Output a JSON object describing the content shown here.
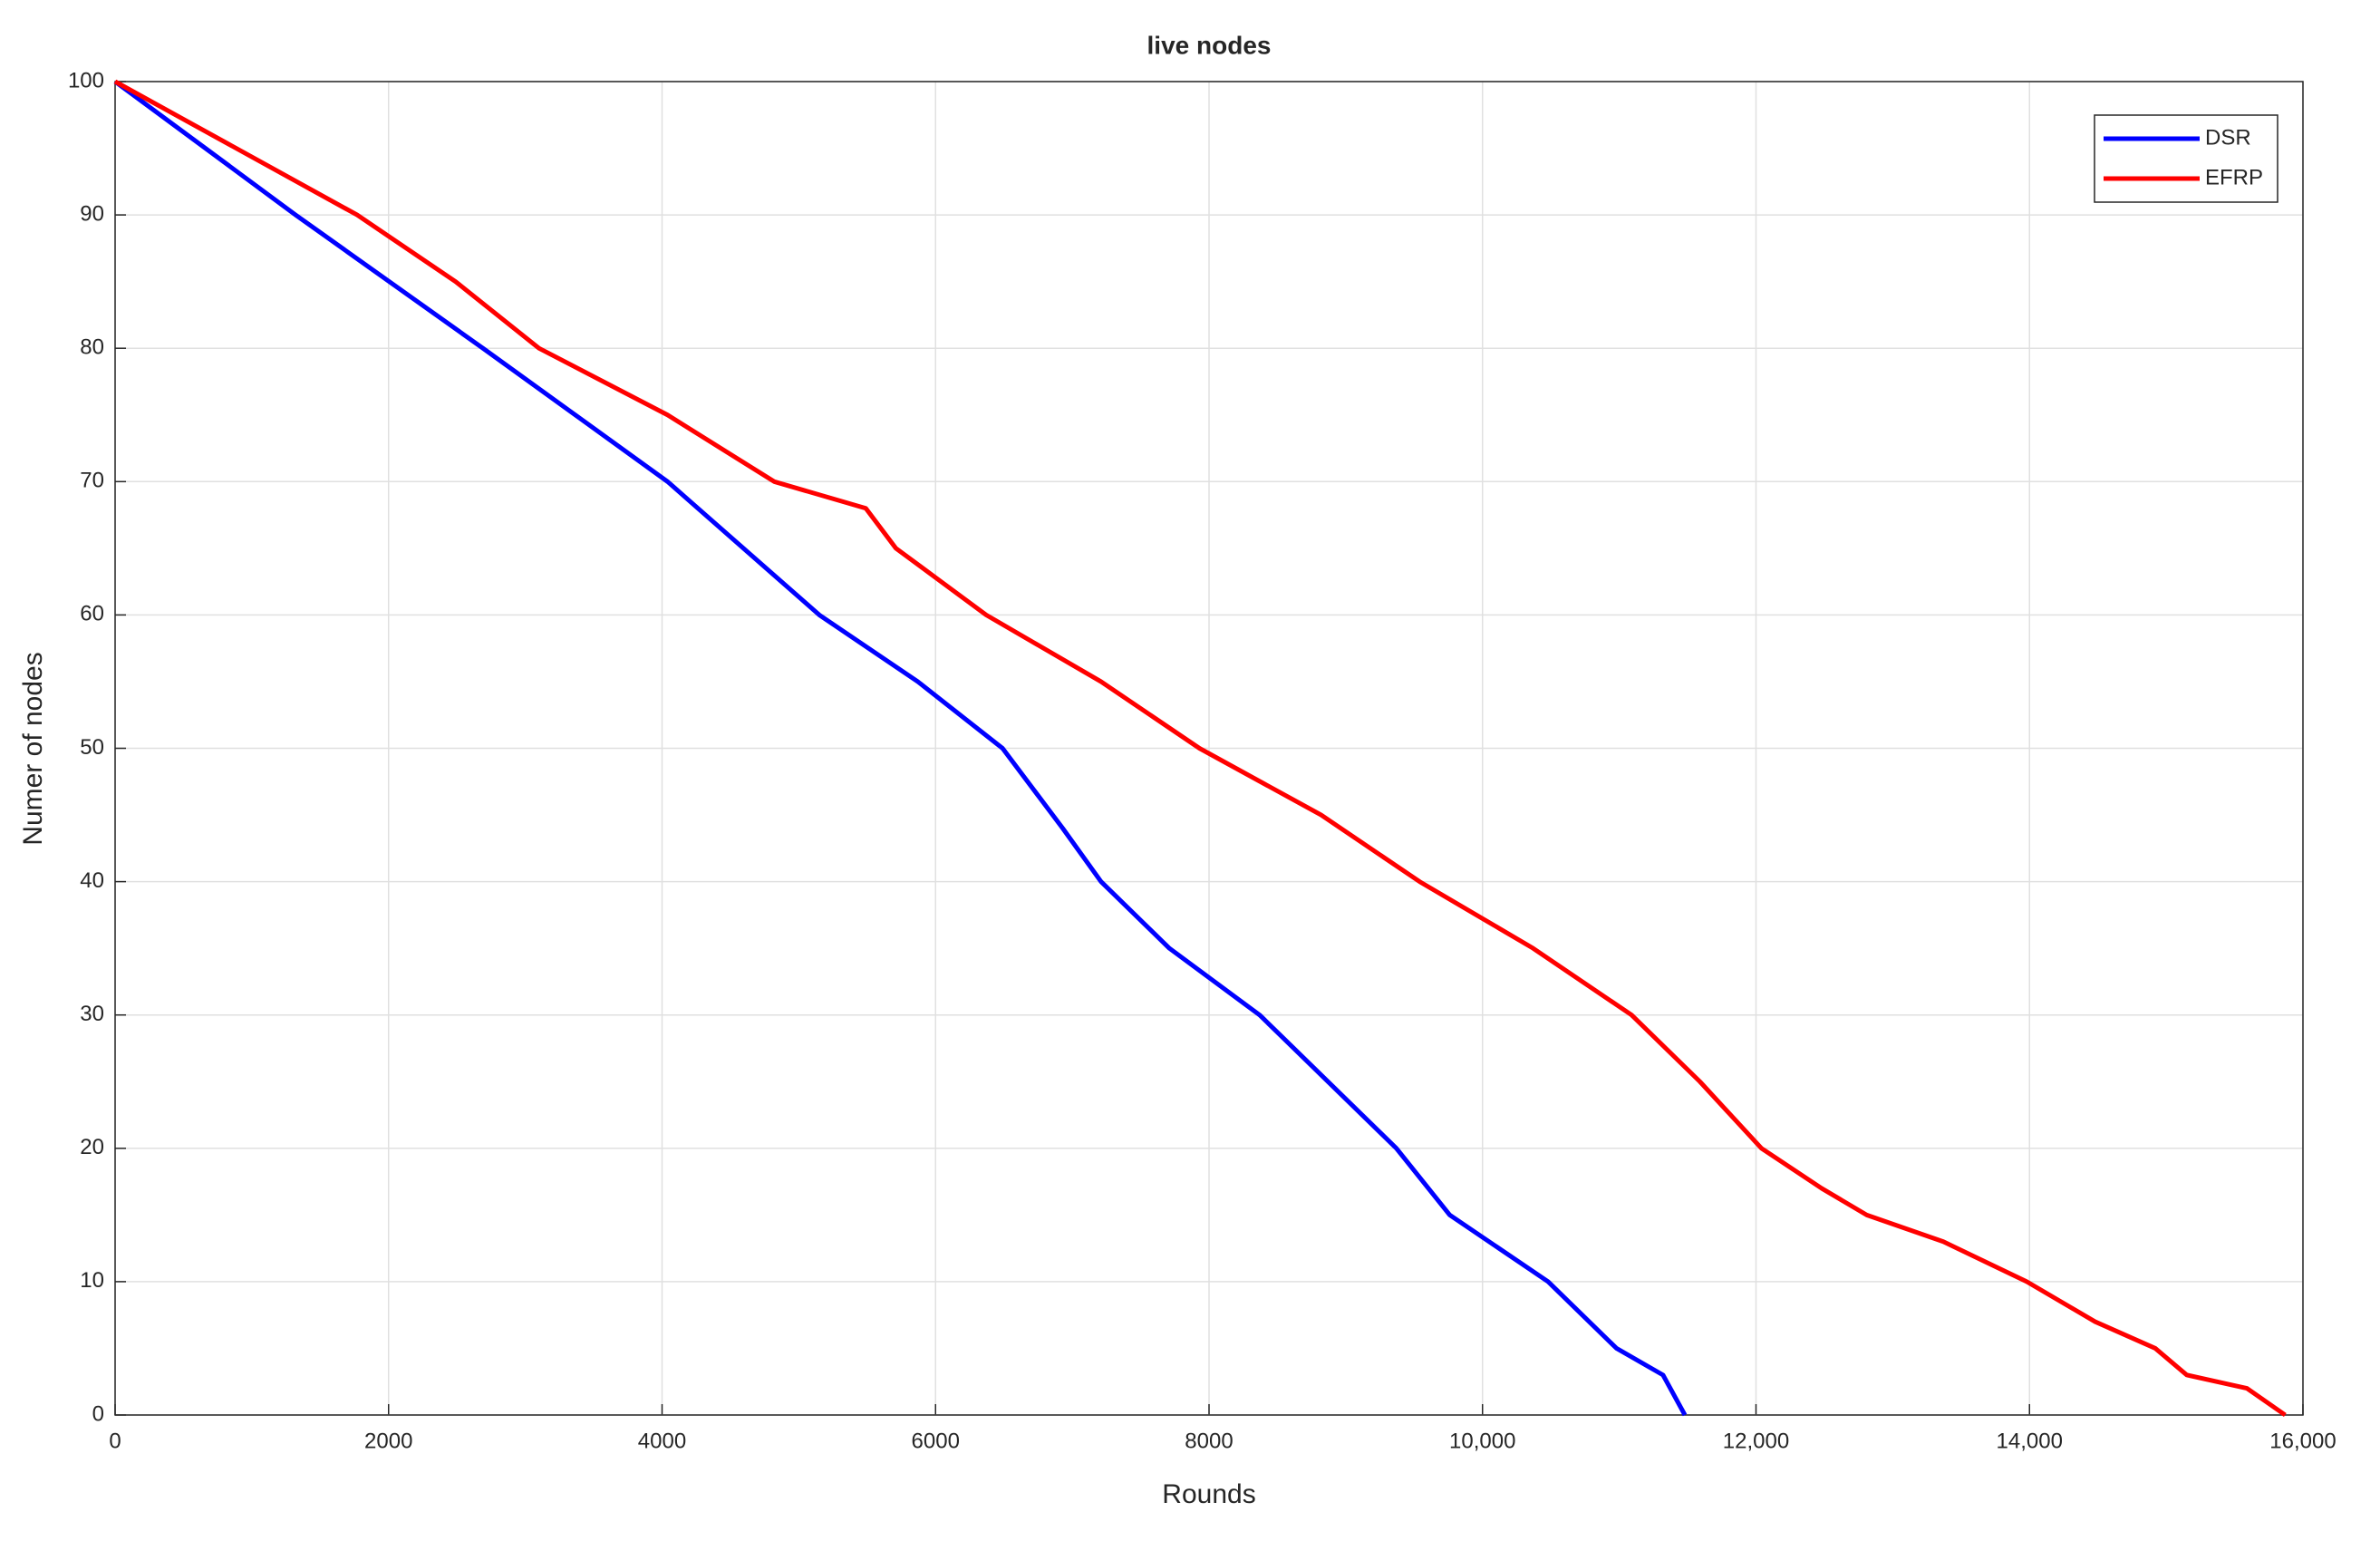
{
  "chart_data": {
    "type": "line",
    "title": "live nodes",
    "x_label": "Rounds",
    "y_label": "Numer of nodes",
    "xlim": [
      0,
      16000
    ],
    "ylim": [
      0,
      100
    ],
    "xticks": [
      0,
      2000,
      4000,
      6000,
      8000,
      {
        "value": 10000,
        "label": "10,000"
      },
      {
        "value": 12000,
        "label": "12,000"
      },
      {
        "value": 14000,
        "label": "14,000"
      },
      {
        "value": 16000,
        "label": "16,000"
      }
    ],
    "yticks": [
      0,
      10,
      20,
      30,
      40,
      50,
      60,
      70,
      80,
      90,
      100
    ],
    "grid": true,
    "legend": "upper right",
    "series": [
      {
        "name": "DSR",
        "color": "#0000ff",
        "x": [
          0,
          1320,
          2690,
          4040,
          5150,
          5870,
          6490,
          6930,
          7210,
          7710,
          8370,
          9370,
          9760,
          10480,
          10980,
          11320,
          11480
        ],
        "values": [
          100,
          90,
          80,
          70,
          60,
          55,
          50,
          44,
          40,
          35,
          30,
          20,
          15,
          10,
          5,
          3,
          0
        ]
      },
      {
        "name": "EFRP",
        "color": "#ff0000",
        "x": [
          0,
          1770,
          2490,
          3100,
          4040,
          4820,
          5490,
          5710,
          6370,
          7210,
          7930,
          8820,
          9540,
          10370,
          11090,
          11590,
          12040,
          12480,
          12810,
          13370,
          13980,
          14480,
          14920,
          15150,
          15590,
          15870
        ],
        "values": [
          100,
          90,
          85,
          80,
          75,
          70,
          68,
          65,
          60,
          55,
          50,
          45,
          40,
          35,
          30,
          25,
          20,
          17,
          15,
          13,
          10,
          7,
          5,
          3,
          2,
          0
        ]
      }
    ]
  }
}
